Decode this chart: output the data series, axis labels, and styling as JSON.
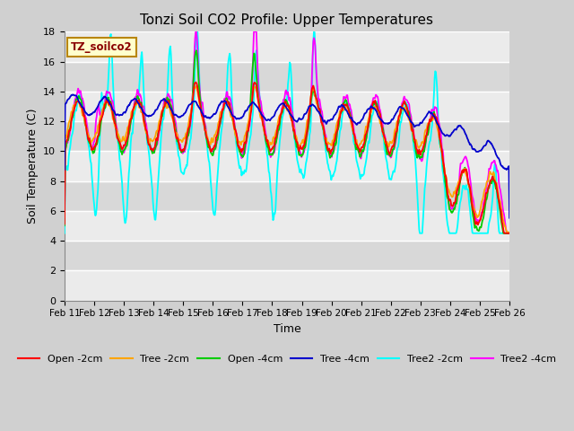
{
  "title": "Tonzi Soil CO2 Profile: Upper Temperatures",
  "xlabel": "Time",
  "ylabel": "Soil Temperature (C)",
  "ylim": [
    0,
    18
  ],
  "yticks": [
    0,
    2,
    4,
    6,
    8,
    10,
    12,
    14,
    16,
    18
  ],
  "xtick_labels": [
    "Feb 11",
    "Feb 12",
    "Feb 13",
    "Feb 14",
    "Feb 15",
    "Feb 16",
    "Feb 17",
    "Feb 18",
    "Feb 19",
    "Feb 20",
    "Feb 21",
    "Feb 22",
    "Feb 23",
    "Feb 24",
    "Feb 25",
    "Feb 26"
  ],
  "watermark": "TZ_soilco2",
  "fig_bg": "#d8d8d8",
  "plot_bg": "#d8d8d8",
  "band_color": "#c0c0c0",
  "grid_color": "#ffffff",
  "series_colors": {
    "open2": "#ff0000",
    "tree2": "#ffa500",
    "open4": "#00cc00",
    "tree4": "#0000cc",
    "tree2_2": "#00ffff",
    "tree2_4": "#ff00ff"
  },
  "legend_labels": [
    "Open -2cm",
    "Tree -2cm",
    "Open -4cm",
    "Tree -4cm",
    "Tree2 -2cm",
    "Tree2 -4cm"
  ]
}
